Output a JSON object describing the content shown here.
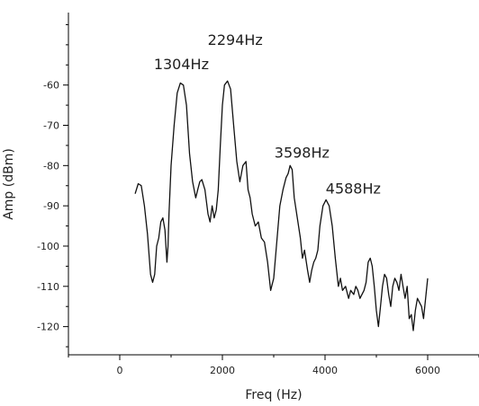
{
  "chart_data": {
    "type": "line",
    "xlabel": "Freq (Hz)",
    "ylabel": "Amp (dBm)",
    "xlim": [
      -1000,
      7000
    ],
    "ylim": [
      -127,
      -42
    ],
    "xticks": [
      0,
      2000,
      4000,
      6000
    ],
    "xtick_labels": [
      "0",
      "2000",
      "4000",
      "6000"
    ],
    "yticks": [
      -60,
      -70,
      -80,
      -90,
      -100,
      -110,
      -120
    ],
    "ytick_labels": [
      "-60",
      "-70",
      "-80",
      "-90",
      "-100",
      "-110",
      "-120"
    ],
    "grid": false,
    "annotations": [
      {
        "text": "1304Hz",
        "x": 1200,
        "y": -56
      },
      {
        "text": "2294Hz",
        "x": 2250,
        "y": -50
      },
      {
        "text": "3598Hz",
        "x": 3550,
        "y": -78
      },
      {
        "text": "4588Hz",
        "x": 4550,
        "y": -87
      }
    ],
    "series": [
      {
        "x": [
          300,
          360,
          420,
          480,
          540,
          600,
          640,
          680,
          720,
          760,
          800,
          840,
          880,
          920,
          940,
          960,
          1000,
          1060,
          1120,
          1180,
          1240,
          1300,
          1360,
          1420,
          1480,
          1520,
          1560,
          1600,
          1660,
          1720,
          1760,
          1800,
          1840,
          1880,
          1920,
          1960,
          2000,
          2040,
          2100,
          2160,
          2220,
          2280,
          2340,
          2400,
          2460,
          2500,
          2540,
          2580,
          2640,
          2700,
          2760,
          2820,
          2880,
          2940,
          3000,
          3060,
          3120,
          3180,
          3240,
          3280,
          3320,
          3360,
          3400,
          3460,
          3520,
          3560,
          3600,
          3660,
          3700,
          3740,
          3780,
          3820,
          3860,
          3900,
          3960,
          4020,
          4080,
          4140,
          4200,
          4260,
          4300,
          4340,
          4400,
          4460,
          4500,
          4560,
          4600,
          4640,
          4680,
          4720,
          4760,
          4800,
          4840,
          4880,
          4920,
          4960,
          5000,
          5040,
          5080,
          5120,
          5160,
          5200,
          5240,
          5280,
          5320,
          5360,
          5400,
          5440,
          5480,
          5520,
          5560,
          5600,
          5640,
          5680,
          5720,
          5760,
          5800,
          5840,
          5880,
          5920,
          5960,
          6000
        ],
        "y": [
          -87,
          -84.5,
          -85,
          -90,
          -97,
          -107,
          -109,
          -107,
          -100,
          -98,
          -94,
          -93,
          -96,
          -104,
          -100,
          -92,
          -80,
          -70,
          -62,
          -59.5,
          -60,
          -65,
          -77,
          -84,
          -88,
          -86,
          -84,
          -83.5,
          -86,
          -92,
          -94,
          -90,
          -93,
          -91,
          -86,
          -75,
          -65,
          -60,
          -59,
          -61,
          -70,
          -79,
          -84,
          -80,
          -79,
          -86,
          -88,
          -92,
          -95,
          -94,
          -98,
          -99,
          -104,
          -111,
          -108,
          -99,
          -90,
          -86,
          -83,
          -82,
          -80,
          -81,
          -88,
          -93,
          -98,
          -103,
          -101,
          -106,
          -109,
          -106,
          -104,
          -103,
          -101,
          -95,
          -90,
          -88.5,
          -90,
          -95,
          -103,
          -110,
          -108,
          -111,
          -110,
          -113,
          -111,
          -112,
          -110,
          -111,
          -113,
          -112,
          -111,
          -109,
          -104,
          -103,
          -105,
          -110,
          -116,
          -120,
          -115,
          -110,
          -107,
          -108,
          -112,
          -115,
          -110,
          -108,
          -109,
          -111,
          -107,
          -110,
          -113,
          -110,
          -118,
          -117,
          -121,
          -116,
          -113,
          -114,
          -115,
          -118,
          -113,
          -108
        ]
      }
    ]
  }
}
